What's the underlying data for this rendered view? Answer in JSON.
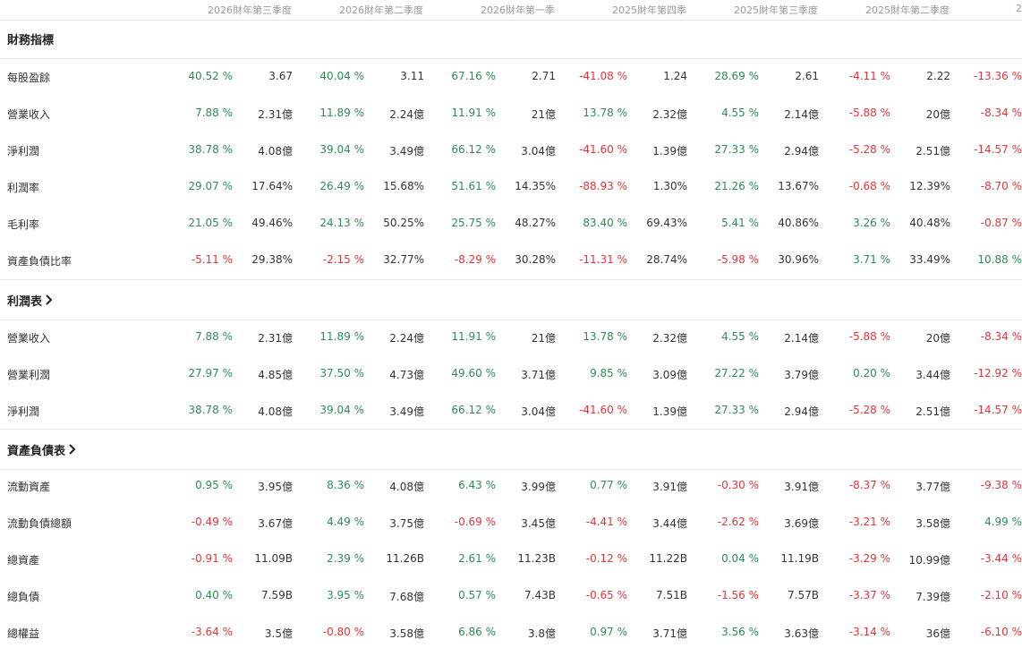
{
  "columns": [
    "2026財年第三季度",
    "2026財年第二季度",
    "2026財年第一季",
    "2025財年第四季",
    "2025財年第三季度",
    "2025財年第二季度",
    "2"
  ],
  "colors": {
    "positive": "#2e8b57",
    "negative": "#e0343b"
  },
  "sections": [
    {
      "title": "財務指標",
      "has_chevron": false,
      "rows": [
        {
          "label": "每股盈餘",
          "cells": [
            [
              "40.52 %",
              "3.67"
            ],
            [
              "40.04 %",
              "3.11"
            ],
            [
              "67.16 %",
              "2.71"
            ],
            [
              "-41.08 %",
              "1.24"
            ],
            [
              "28.69 %",
              "2.61"
            ],
            [
              "-4.11 %",
              "2.22"
            ],
            [
              "-13.36 %",
              ""
            ]
          ]
        },
        {
          "label": "營業收入",
          "cells": [
            [
              "7.88 %",
              "2.31億"
            ],
            [
              "11.89 %",
              "2.24億"
            ],
            [
              "11.91 %",
              "21億"
            ],
            [
              "13.78 %",
              "2.32億"
            ],
            [
              "4.55 %",
              "2.14億"
            ],
            [
              "-5.88 %",
              "20億"
            ],
            [
              "-8.34 %",
              ""
            ]
          ]
        },
        {
          "label": "淨利潤",
          "cells": [
            [
              "38.78 %",
              "4.08億"
            ],
            [
              "39.04 %",
              "3.49億"
            ],
            [
              "66.12 %",
              "3.04億"
            ],
            [
              "-41.60 %",
              "1.39億"
            ],
            [
              "27.33 %",
              "2.94億"
            ],
            [
              "-5.28 %",
              "2.51億"
            ],
            [
              "-14.57 %",
              ""
            ]
          ]
        },
        {
          "label": "利潤率",
          "cells": [
            [
              "29.07 %",
              "17.64%"
            ],
            [
              "26.49 %",
              "15.68%"
            ],
            [
              "51.61 %",
              "14.35%"
            ],
            [
              "-88.93 %",
              "1.30%"
            ],
            [
              "21.26 %",
              "13.67%"
            ],
            [
              "-0.68 %",
              "12.39%"
            ],
            [
              "-8.70 %",
              ""
            ]
          ]
        },
        {
          "label": "毛利率",
          "cells": [
            [
              "21.05 %",
              "49.46%"
            ],
            [
              "24.13 %",
              "50.25%"
            ],
            [
              "25.75 %",
              "48.27%"
            ],
            [
              "83.40 %",
              "69.43%"
            ],
            [
              "5.41 %",
              "40.86%"
            ],
            [
              "3.26 %",
              "40.48%"
            ],
            [
              "-0.87 %",
              ""
            ]
          ]
        },
        {
          "label": "資產負債比率",
          "cells": [
            [
              "-5.11 %",
              "29.38%"
            ],
            [
              "-2.15 %",
              "32.77%"
            ],
            [
              "-8.29 %",
              "30.28%"
            ],
            [
              "-11.31 %",
              "28.74%"
            ],
            [
              "-5.98 %",
              "30.96%"
            ],
            [
              "3.71 %",
              "33.49%"
            ],
            [
              "10.88 %",
              ""
            ]
          ]
        }
      ]
    },
    {
      "title": "利潤表",
      "has_chevron": true,
      "rows": [
        {
          "label": "營業收入",
          "cells": [
            [
              "7.88 %",
              "2.31億"
            ],
            [
              "11.89 %",
              "2.24億"
            ],
            [
              "11.91 %",
              "21億"
            ],
            [
              "13.78 %",
              "2.32億"
            ],
            [
              "4.55 %",
              "2.14億"
            ],
            [
              "-5.88 %",
              "20億"
            ],
            [
              "-8.34 %",
              ""
            ]
          ]
        },
        {
          "label": "營業利潤",
          "cells": [
            [
              "27.97 %",
              "4.85億"
            ],
            [
              "37.50 %",
              "4.73億"
            ],
            [
              "49.60 %",
              "3.71億"
            ],
            [
              "9.85 %",
              "3.09億"
            ],
            [
              "27.22 %",
              "3.79億"
            ],
            [
              "0.20 %",
              "3.44億"
            ],
            [
              "-12.92 %",
              ""
            ]
          ]
        },
        {
          "label": "淨利潤",
          "cells": [
            [
              "38.78 %",
              "4.08億"
            ],
            [
              "39.04 %",
              "3.49億"
            ],
            [
              "66.12 %",
              "3.04億"
            ],
            [
              "-41.60 %",
              "1.39億"
            ],
            [
              "27.33 %",
              "2.94億"
            ],
            [
              "-5.28 %",
              "2.51億"
            ],
            [
              "-14.57 %",
              ""
            ]
          ]
        }
      ]
    },
    {
      "title": "資產負債表",
      "has_chevron": true,
      "rows": [
        {
          "label": "流動資產",
          "cells": [
            [
              "0.95 %",
              "3.95億"
            ],
            [
              "8.36 %",
              "4.08億"
            ],
            [
              "6.43 %",
              "3.99億"
            ],
            [
              "0.77 %",
              "3.91億"
            ],
            [
              "-0.30 %",
              "3.91億"
            ],
            [
              "-8.37 %",
              "3.77億"
            ],
            [
              "-9.38 %",
              ""
            ]
          ]
        },
        {
          "label": "流動負債總額",
          "cells": [
            [
              "-0.49 %",
              "3.67億"
            ],
            [
              "4.49 %",
              "3.75億"
            ],
            [
              "-0.69 %",
              "3.45億"
            ],
            [
              "-4.41 %",
              "3.44億"
            ],
            [
              "-2.62 %",
              "3.69億"
            ],
            [
              "-3.21 %",
              "3.58億"
            ],
            [
              "4.99 %",
              ""
            ]
          ]
        },
        {
          "label": "總資產",
          "cells": [
            [
              "-0.91 %",
              "11.09B"
            ],
            [
              "2.39 %",
              "11.26B"
            ],
            [
              "2.61 %",
              "11.23B"
            ],
            [
              "-0.12 %",
              "11.22B"
            ],
            [
              "0.04 %",
              "11.19B"
            ],
            [
              "-3.29 %",
              "10.99億"
            ],
            [
              "-3.44 %",
              ""
            ]
          ]
        },
        {
          "label": "總負債",
          "cells": [
            [
              "0.40 %",
              "7.59B"
            ],
            [
              "3.95 %",
              "7.68億"
            ],
            [
              "0.57 %",
              "7.43B"
            ],
            [
              "-0.65 %",
              "7.51B"
            ],
            [
              "-1.56 %",
              "7.57B"
            ],
            [
              "-3.37 %",
              "7.39億"
            ],
            [
              "-2.10 %",
              ""
            ]
          ]
        },
        {
          "label": "總權益",
          "cells": [
            [
              "-3.64 %",
              "3.5億"
            ],
            [
              "-0.80 %",
              "3.58億"
            ],
            [
              "6.86 %",
              "3.8億"
            ],
            [
              "0.97 %",
              "3.71億"
            ],
            [
              "3.56 %",
              "3.63億"
            ],
            [
              "-3.14 %",
              "36億"
            ],
            [
              "-6.10 %",
              ""
            ]
          ]
        }
      ]
    }
  ]
}
